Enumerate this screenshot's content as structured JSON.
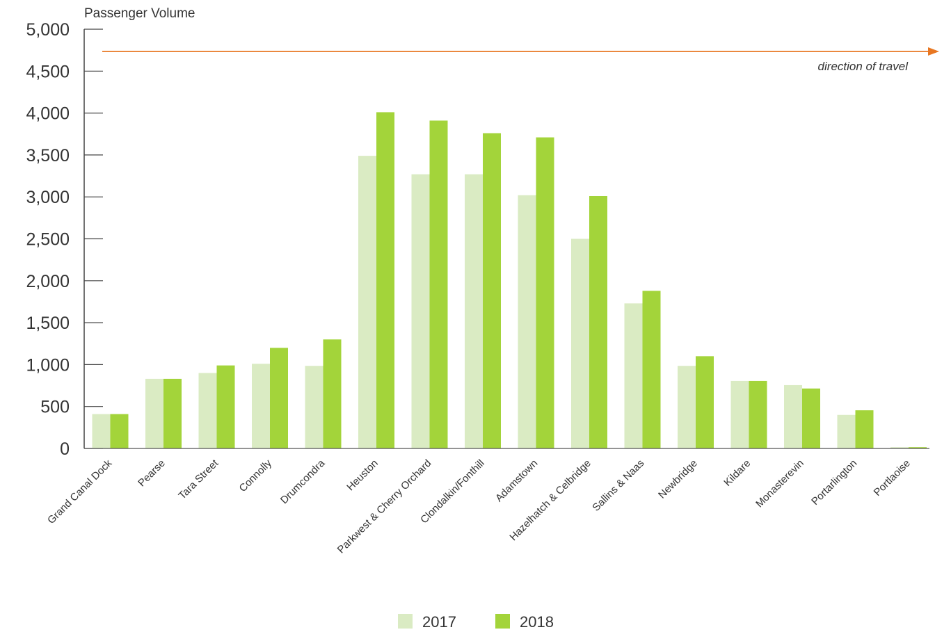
{
  "chart_data": {
    "type": "bar",
    "title": "",
    "xlabel": "",
    "ylabel": "Passenger Volume",
    "ylim": [
      0,
      5000
    ],
    "yticks": [
      0,
      500,
      1000,
      1500,
      2000,
      2500,
      3000,
      3500,
      4000,
      4500,
      5000
    ],
    "ytick_labels": [
      "0",
      "500",
      "1,000",
      "1,500",
      "2,000",
      "2,500",
      "3,000",
      "3,500",
      "4,000",
      "4,500",
      "5,000"
    ],
    "categories": [
      "Grand Canal Dock",
      "Pearse",
      "Tara Street",
      "Connolly",
      "Drumcondra",
      "Heuston",
      "Parkwest & Cherry Orchard",
      "Clondalkin/Fonthill",
      "Adamstown",
      "Hazelhatch & Celbridge",
      "Sallins & Naas",
      "Newbridge",
      "Kildare",
      "Monasterevin",
      "Portarlington",
      "Portlaoise"
    ],
    "series": [
      {
        "name": "2017",
        "color": "#daebc3",
        "values": [
          410,
          830,
          900,
          1010,
          985,
          3490,
          3270,
          3270,
          3020,
          2500,
          1730,
          985,
          805,
          755,
          400,
          15
        ]
      },
      {
        "name": "2018",
        "color": "#a3d43a",
        "values": [
          410,
          830,
          990,
          1200,
          1300,
          4010,
          3910,
          3760,
          3710,
          3010,
          1880,
          1100,
          805,
          715,
          455,
          15
        ]
      }
    ],
    "grid": false,
    "legend_position": "bottom-center",
    "annotation": {
      "text": "direction of travel",
      "arrow_color": "#e87722"
    }
  }
}
